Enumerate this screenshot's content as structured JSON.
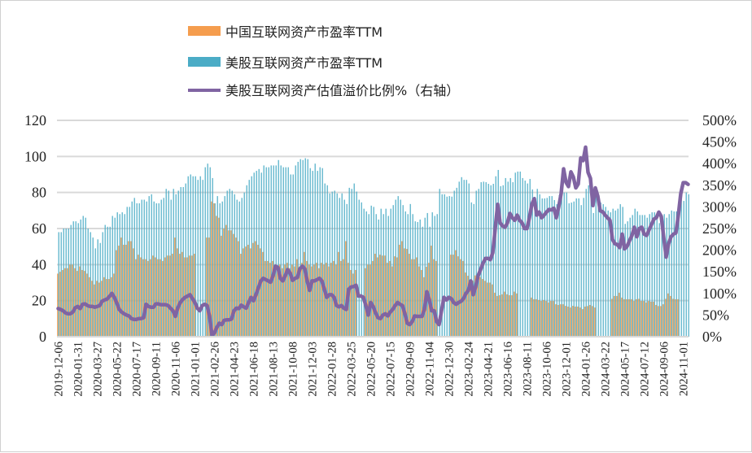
{
  "chart_data": {
    "type": "bar+line",
    "frequency": "weekly",
    "x_tick_labels": [
      "2019-12-06",
      "2020-01-31",
      "2020-03-27",
      "2020-05-22",
      "2020-07-17",
      "2020-09-11",
      "2020-11-06",
      "2021-01-01",
      "2021-02-26",
      "2021-04-23",
      "2021-06-18",
      "2021-08-13",
      "2021-10-08",
      "2021-12-03",
      "2022-01-28",
      "2022-03-25",
      "2022-05-20",
      "2022-07-15",
      "2022-09-09",
      "2022-11-04",
      "2022-12-30",
      "2023-02-24",
      "2023-04-21",
      "2023-06-16",
      "2023-08-11",
      "2023-10-06",
      "2023-12-01",
      "2024-01-26",
      "2024-03-22",
      "2024-05-17",
      "2024-07-12",
      "2024-09-06",
      "2024-11-01"
    ],
    "left_axis": {
      "range": [
        0,
        120
      ],
      "ticks": [
        "0",
        "20",
        "40",
        "60",
        "80",
        "100",
        "120"
      ]
    },
    "right_axis": {
      "range": [
        0,
        500
      ],
      "ticks": [
        "0%",
        "50%",
        "100%",
        "150%",
        "200%",
        "250%",
        "300%",
        "350%",
        "400%",
        "450%",
        "500%"
      ]
    },
    "grid": true,
    "legend_placement": "top",
    "series": [
      {
        "name": "中国互联网资产市盈率TTM",
        "kind": "bar",
        "axis": "left",
        "color": "#F59D4E",
        "values": [
          35,
          36,
          37,
          38,
          38,
          40,
          40,
          38,
          36.5,
          39,
          37,
          36.5,
          35,
          33,
          31,
          29,
          31,
          30,
          31,
          33,
          32,
          32,
          33,
          35,
          48,
          50.5,
          55,
          51,
          51,
          53,
          53,
          49,
          43,
          45.5,
          44,
          43,
          43,
          42,
          43,
          45,
          44,
          43,
          43,
          42,
          44,
          45,
          45,
          46,
          55,
          49,
          46,
          47,
          44,
          44,
          45,
          45,
          46,
          null,
          null,
          null,
          null,
          55,
          55,
          75,
          74,
          67,
          66,
          56,
          60,
          62,
          59,
          59,
          57,
          55,
          53,
          46,
          49,
          50,
          51,
          49,
          52,
          53,
          51,
          49,
          47,
          42,
          42,
          41,
          42,
          39,
          38,
          40,
          38,
          40,
          41,
          38,
          40,
          39,
          43,
          39,
          41,
          47,
          42,
          40,
          39,
          40,
          41,
          38,
          41,
          40,
          41,
          39,
          41,
          42,
          40,
          47,
          42,
          43,
          53,
          41,
          37,
          35,
          37,
          null,
          null,
          null,
          38,
          40,
          40,
          42,
          46,
          44,
          45.5,
          45,
          45,
          41,
          42,
          39,
          44.6,
          44,
          51,
          53,
          49,
          48.7,
          46,
          43,
          43,
          44,
          39,
          37,
          33,
          38.8,
          41,
          50.5,
          43,
          42,
          null,
          null,
          null,
          null,
          null,
          45.5,
          45.5,
          48,
          44.6,
          43,
          42,
          35.6,
          33.8,
          29.7,
          31,
          34,
          33,
          33,
          32,
          31,
          30,
          30,
          29,
          24.4,
          22.6,
          23,
          23.5,
          25,
          23.5,
          23,
          23,
          25,
          24,
          null,
          null,
          null,
          null,
          null,
          21.7,
          20.8,
          20.8,
          20.3,
          19.8,
          20.3,
          19.8,
          19,
          19.8,
          19.8,
          18,
          17.6,
          18,
          18,
          17.1,
          16.7,
          16.2,
          17.1,
          16.7,
          16.7,
          16.2,
          15.3,
          16.7,
          17,
          17.6,
          17,
          16.2,
          null,
          null,
          null,
          null,
          null,
          null,
          21,
          22.6,
          22.6,
          24.4,
          21.7,
          20.8,
          20.8,
          20.8,
          20.8,
          19.8,
          20.8,
          21,
          19.8,
          19.8,
          19,
          19.8,
          19.4,
          19.4,
          17.6,
          17,
          17,
          18,
          21,
          24,
          22.6,
          21,
          20.8,
          20.8,
          null,
          null,
          null,
          null
        ]
      },
      {
        "name": "美股互联网资产市盈率TTM",
        "kind": "bar",
        "axis": "left",
        "color": "#4BACC6",
        "values": [
          58,
          58,
          60,
          60,
          60,
          62,
          64,
          64,
          63,
          65,
          67,
          66,
          60,
          58,
          55,
          49,
          54,
          52,
          58,
          62,
          61,
          61,
          67,
          66,
          69,
          68,
          69,
          68,
          72,
          72,
          75,
          77,
          74,
          74,
          76,
          76,
          75,
          78,
          79,
          75,
          74,
          74,
          76,
          77,
          82,
          81,
          76,
          82,
          79,
          81,
          83,
          83,
          85,
          89,
          90,
          89,
          89,
          87,
          89,
          87,
          94,
          96,
          94,
          88,
          74,
          78,
          74,
          75,
          78,
          81,
          82,
          81,
          79,
          76,
          75,
          77,
          80,
          84,
          87,
          89,
          91,
          92,
          93,
          91,
          95,
          94,
          94,
          95,
          95,
          95,
          98,
          95,
          94,
          94,
          94,
          90,
          90,
          95,
          97,
          98.5,
          98,
          99,
          98.5,
          93.5,
          92,
          96,
          92,
          94,
          93.5,
          85,
          84,
          79.5,
          80.5,
          81,
          79.5,
          77,
          79.5,
          76,
          73.6,
          82.6,
          82,
          85,
          80.5,
          76,
          74.5,
          71,
          69.5,
          68,
          72.7,
          72,
          68,
          65,
          71,
          68,
          71,
          67,
          71,
          73,
          76,
          78,
          76,
          73,
          69.5,
          68,
          73.6,
          68,
          64,
          63.6,
          65,
          61,
          66,
          68.6,
          61,
          69,
          67,
          68,
          82,
          79,
          79,
          77.7,
          78,
          77.7,
          81,
          82.6,
          86,
          88.5,
          87,
          87,
          85,
          74.5,
          73.6,
          81,
          82,
          85.7,
          86,
          85.7,
          84.8,
          84,
          84.8,
          89,
          92.5,
          83.5,
          84,
          88,
          86,
          88,
          85.7,
          91,
          91.6,
          91.6,
          88,
          86.6,
          85,
          87.5,
          81.7,
          77.6,
          82,
          79,
          76.7,
          76.7,
          77,
          78,
          78,
          75.8,
          73.5,
          78.5,
          82.6,
          80,
          80,
          74,
          74.4,
          75,
          76.7,
          76.7,
          73,
          77,
          82,
          84,
          81,
          68.6,
          82.6,
          77,
          74.4,
          73.5,
          72,
          70,
          69,
          71,
          70,
          71,
          73.5,
          72,
          62.6,
          64,
          66,
          67.5,
          71,
          69.5,
          67.5,
          67.5,
          67.5,
          66,
          68,
          69,
          69,
          66,
          63,
          67.5,
          68,
          66,
          68,
          70,
          69.5,
          69.5,
          69.5,
          76.7,
          75.3,
          80,
          79
        ]
      },
      {
        "name": "美股互联网资产估值溢价比例%（右轴）",
        "kind": "line",
        "axis": "right",
        "color": "#8064A2",
        "unit": "%",
        "values": [
          65,
          63,
          60,
          55,
          53,
          53,
          57,
          67,
          70,
          65,
          75,
          76,
          72,
          70,
          70,
          68,
          70,
          72,
          82,
          85,
          87,
          93,
          100,
          91,
          78,
          63,
          57,
          53,
          50,
          48,
          42,
          40,
          40,
          42,
          42,
          44,
          75,
          70,
          68,
          68,
          76,
          76,
          74,
          74,
          74,
          72,
          66,
          60,
          47,
          67,
          79,
          86,
          91,
          94,
          97,
          88,
          79,
          66,
          60,
          72,
          75,
          72,
          47,
          3,
          9,
          22,
          31,
          28,
          38,
          39,
          39,
          41,
          60,
          66,
          65,
          73,
          69,
          66,
          79,
          91,
          83,
          97,
          113,
          129,
          135,
          132,
          129,
          126,
          141,
          163,
          160,
          135,
          129,
          141,
          155,
          147,
          130,
          135,
          137,
          157,
          163,
          157,
          129,
          107,
          129,
          129,
          132,
          135,
          129,
          110,
          91,
          97,
          97,
          91,
          72,
          69,
          72,
          66,
          63,
          110,
          115,
          116,
          119,
          94,
          94,
          91,
          72,
          50,
          79,
          70,
          55,
          44,
          42,
          50,
          53,
          48,
          57,
          63,
          72,
          79,
          75,
          72,
          53,
          31,
          28,
          35,
          48,
          47,
          47,
          47,
          63,
          104,
          85,
          60,
          60,
          35,
          28,
          60,
          91,
          85,
          91,
          88,
          79,
          75,
          79,
          82,
          88,
          100,
          107,
          129,
          97,
          116,
          141,
          155,
          170,
          181,
          181,
          178,
          194,
          250,
          306,
          263,
          256,
          253,
          263,
          285,
          275,
          269,
          281,
          269,
          263,
          250,
          250,
          275,
          306,
          319,
          281,
          288,
          275,
          281,
          288,
          294,
          293,
          297,
          275,
          300,
          331,
          388,
          357,
          347,
          381,
          369,
          344,
          353,
          413,
          407,
          438,
          380,
          366,
          303,
          344,
          325,
          291,
          289,
          281,
          275,
          269,
          225,
          215,
          213,
          206,
          237,
          203,
          209,
          222,
          234,
          253,
          231,
          250,
          253,
          237,
          234,
          247,
          259,
          272,
          275,
          288,
          278,
          230,
          184,
          215,
          231,
          237,
          240,
          281,
          331,
          356,
          356,
          352
        ]
      }
    ]
  },
  "colors": {
    "grid": "#D9D9D9",
    "cn": "#F59D4E",
    "us": "#4BACC6",
    "premium": "#8064A2"
  }
}
